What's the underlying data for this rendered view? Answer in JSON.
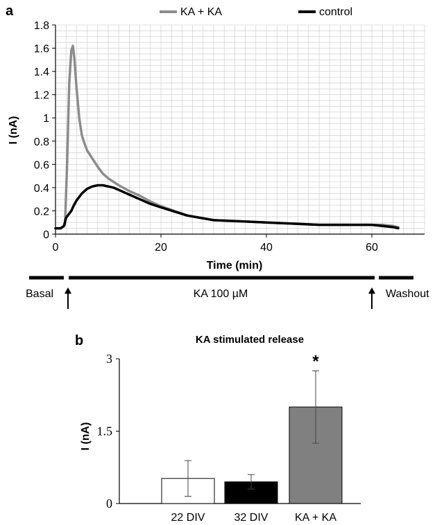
{
  "colors": {
    "ka_ka": "#8c8c8c",
    "control": "#000000",
    "bar_22": "#ffffff",
    "bar_32": "#000000",
    "bar_ka": "#808080",
    "grid": "#c8c8c8"
  },
  "chart_data": [
    {
      "panel": "a",
      "type": "line",
      "xlabel": "Time (min)",
      "ylabel": "I (nA)",
      "xlim": [
        0,
        70
      ],
      "ylim": [
        0,
        1.8
      ],
      "x_ticks": [
        "0",
        "20",
        "40",
        "60"
      ],
      "y_ticks": [
        "0",
        "0.2",
        "0.4",
        "0.6",
        "0.8",
        "1",
        "1.2",
        "1.4",
        "1.6",
        "1.8"
      ],
      "grid": true,
      "legend_position": "top",
      "series": [
        {
          "name": "KA + KA",
          "color": "#8c8c8c",
          "x": [
            0,
            1,
            1.8,
            2.2,
            2.6,
            3.0,
            3.3,
            3.6,
            4.0,
            4.5,
            5.0,
            5.5,
            6.0,
            7.0,
            8.0,
            9.0,
            10.0,
            12.0,
            14.0,
            16.0,
            18.0,
            20.0,
            25.0,
            30.0,
            35.0,
            40.0,
            45.0,
            50.0,
            55.0,
            60.0,
            62.0,
            64.0,
            65.0
          ],
          "y": [
            0.05,
            0.05,
            0.08,
            0.6,
            1.3,
            1.58,
            1.62,
            1.5,
            1.25,
            1.0,
            0.85,
            0.78,
            0.72,
            0.65,
            0.58,
            0.52,
            0.48,
            0.42,
            0.37,
            0.33,
            0.28,
            0.24,
            0.16,
            0.12,
            0.11,
            0.1,
            0.09,
            0.08,
            0.08,
            0.08,
            0.08,
            0.07,
            0.06
          ]
        },
        {
          "name": "control",
          "color": "#000000",
          "x": [
            0,
            1,
            1.6,
            2.0,
            2.5,
            3.0,
            3.5,
            4.0,
            5.0,
            6.0,
            7.0,
            8.0,
            9.0,
            10.0,
            11.0,
            12.0,
            14.0,
            16.0,
            18.0,
            20.0,
            25.0,
            30.0,
            35.0,
            40.0,
            45.0,
            50.0,
            55.0,
            60.0,
            62.0,
            64.0,
            65.0
          ],
          "y": [
            0.05,
            0.05,
            0.07,
            0.14,
            0.17,
            0.2,
            0.25,
            0.29,
            0.35,
            0.39,
            0.41,
            0.42,
            0.42,
            0.41,
            0.4,
            0.38,
            0.34,
            0.3,
            0.26,
            0.23,
            0.16,
            0.12,
            0.11,
            0.1,
            0.09,
            0.08,
            0.08,
            0.08,
            0.07,
            0.06,
            0.05
          ]
        }
      ],
      "protocol": {
        "basal": "Basal",
        "stim": "KA 100 µM",
        "washout": "Washout",
        "arrow_times": [
          2.5,
          60.5
        ]
      }
    },
    {
      "panel": "b",
      "type": "bar",
      "title": "KA stimulated release",
      "ylabel": "I (nA)",
      "ylim": [
        0,
        3
      ],
      "y_ticks": [
        "0",
        "1.5",
        "3"
      ],
      "categories": [
        "22 DIV",
        "32 DIV",
        "KA + KA"
      ],
      "values": [
        0.52,
        0.45,
        2.0
      ],
      "errors": [
        0.37,
        0.15,
        0.75
      ],
      "annotation": "*"
    }
  ]
}
